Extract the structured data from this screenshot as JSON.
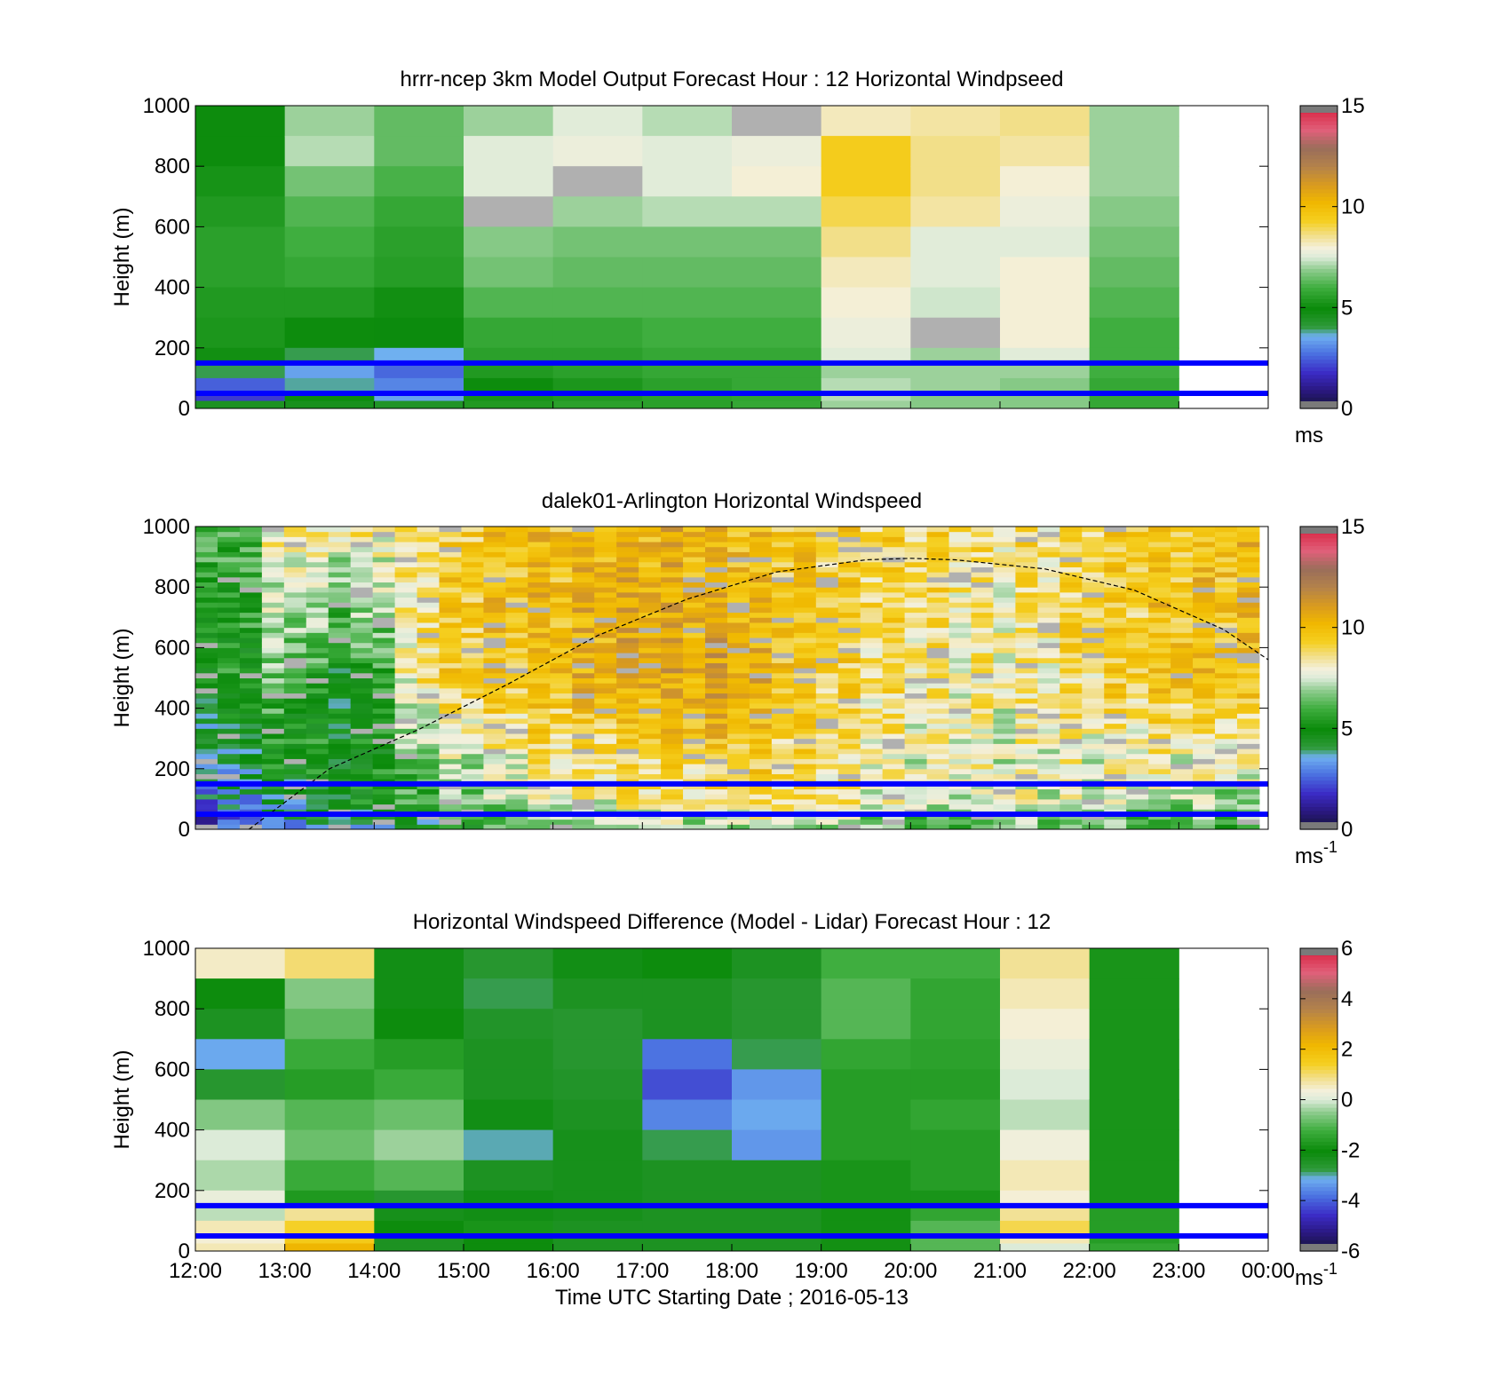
{
  "palette": {
    "speed_stops": [
      [
        0.0,
        "#141432"
      ],
      [
        0.06,
        "#2a1880"
      ],
      [
        0.12,
        "#3b2cc6"
      ],
      [
        0.18,
        "#4a6fe0"
      ],
      [
        0.24,
        "#6fb0f0"
      ],
      [
        0.27,
        "#2f9a3a"
      ],
      [
        0.33,
        "#0a8a0a"
      ],
      [
        0.4,
        "#3fae3f"
      ],
      [
        0.46,
        "#8fcc8f"
      ],
      [
        0.5,
        "#dcebd8"
      ],
      [
        0.53,
        "#f4f0dc"
      ],
      [
        0.57,
        "#f2e090"
      ],
      [
        0.62,
        "#f5cf20"
      ],
      [
        0.68,
        "#f0b800"
      ],
      [
        0.74,
        "#d89a20"
      ],
      [
        0.8,
        "#b4824a"
      ],
      [
        0.86,
        "#9a6e5a"
      ],
      [
        0.92,
        "#e0607a"
      ],
      [
        1.0,
        "#d81e3c"
      ]
    ],
    "overflow_color": "#7a7a7a",
    "missing_color": "#b0b0b0",
    "bounds_line_color": "#0000ff"
  },
  "chart_data": [
    {
      "id": "model",
      "type": "heatmap",
      "title": "hrrr-ncep 3km Model Output   Forecast Hour : 12 Horizontal Windpseed",
      "xlabel": "",
      "ylabel": "Height (m)",
      "xlim": [
        0,
        12
      ],
      "ylim": [
        0,
        1000
      ],
      "yticks": [
        0,
        200,
        400,
        600,
        800,
        1000
      ],
      "xticks": [
        0,
        1,
        2,
        3,
        4,
        5,
        6,
        7,
        8,
        9,
        10,
        11,
        12
      ],
      "show_xtick_labels": false,
      "colorbar": {
        "range": [
          0,
          15
        ],
        "ticks": [
          0,
          5,
          10,
          15
        ],
        "unit": "ms",
        "unit_sup": ""
      },
      "reference_lines": [
        150,
        50
      ],
      "height_levels": [
        1000,
        900,
        800,
        700,
        600,
        500,
        400,
        300,
        200,
        150,
        100,
        50,
        25
      ],
      "columns": [
        {
          "time": 0,
          "values": [
            5.0,
            5.0,
            5.2,
            5.4,
            5.6,
            5.6,
            5.4,
            5.3,
            5.1,
            4.0,
            2.5,
            2.0,
            4.5
          ]
        },
        {
          "time": 1,
          "values": [
            7.0,
            7.2,
            6.6,
            6.2,
            6.0,
            5.8,
            5.4,
            5.0,
            4.0,
            3.4,
            3.8,
            5.0,
            4.6
          ]
        },
        {
          "time": 2,
          "values": [
            6.4,
            6.4,
            6.1,
            5.8,
            5.6,
            5.5,
            5.1,
            4.9,
            3.6,
            2.6,
            3.0,
            3.4,
            4.4
          ]
        },
        {
          "time": 3,
          "values": [
            7.0,
            7.6,
            7.6,
            null,
            6.8,
            6.6,
            6.2,
            5.8,
            5.6,
            5.4,
            5.0,
            5.2,
            5.4
          ]
        },
        {
          "time": 4,
          "values": [
            7.6,
            7.8,
            null,
            7.0,
            6.6,
            6.4,
            6.2,
            5.8,
            5.6,
            5.6,
            5.3,
            5.4,
            5.6
          ]
        },
        {
          "time": 5,
          "values": [
            7.2,
            7.6,
            7.6,
            7.2,
            6.6,
            6.4,
            6.2,
            6.0,
            5.8,
            5.8,
            5.6,
            5.6,
            5.6
          ]
        },
        {
          "time": 6,
          "values": [
            null,
            7.8,
            8.0,
            7.2,
            6.6,
            6.4,
            6.2,
            6.0,
            5.8,
            5.8,
            5.8,
            5.7,
            5.8
          ]
        },
        {
          "time": 7,
          "values": [
            8.2,
            9.4,
            9.4,
            9.0,
            8.6,
            8.2,
            8.0,
            7.8,
            7.6,
            7.0,
            7.2,
            7.2,
            7.0
          ]
        },
        {
          "time": 8,
          "values": [
            8.4,
            8.6,
            8.6,
            8.4,
            7.6,
            7.6,
            7.4,
            null,
            7.0,
            7.0,
            7.0,
            6.8,
            6.8
          ]
        },
        {
          "time": 9,
          "values": [
            8.6,
            8.4,
            8.0,
            7.8,
            7.6,
            8.0,
            8.0,
            8.0,
            7.6,
            7.0,
            6.8,
            6.8,
            6.8
          ]
        },
        {
          "time": 10,
          "values": [
            7.0,
            7.0,
            7.0,
            6.8,
            6.6,
            6.4,
            6.2,
            6.0,
            6.0,
            6.0,
            5.8,
            5.8,
            5.8
          ]
        }
      ]
    },
    {
      "id": "lidar",
      "type": "heatmap",
      "title": "dalek01-Arlington  Horizontal Windspeed",
      "xlabel": "",
      "ylabel": "Height (m)",
      "xlim": [
        0,
        12
      ],
      "ylim": [
        0,
        1000
      ],
      "yticks": [
        0,
        200,
        400,
        600,
        800,
        1000
      ],
      "xticks": [
        0,
        1,
        2,
        3,
        4,
        5,
        6,
        7,
        8,
        9,
        10,
        11,
        12
      ],
      "show_xtick_labels": false,
      "colorbar": {
        "range": [
          0,
          15
        ],
        "ticks": [
          0,
          5,
          10,
          15
        ],
        "unit": "ms",
        "unit_sup": "-1"
      },
      "reference_lines": [
        150,
        50
      ],
      "time_columns_per_hour": 4,
      "time_columns_total": 48,
      "sample_column_hours": 11.9,
      "height_bins": 60,
      "height_profile_anchors": {
        "hours": [
          0,
          0.5,
          1,
          1.5,
          2,
          2.5,
          3,
          4,
          5,
          6,
          6.5,
          7,
          8,
          9,
          10,
          11,
          11.9
        ],
        "speed_at_900m": [
          6.5,
          5.5,
          8.5,
          7.5,
          7.8,
          8.5,
          9.5,
          10.0,
          10.4,
          10.2,
          9.6,
          9.4,
          9.0,
          8.5,
          9.0,
          9.8,
          10.0
        ],
        "speed_at_500m": [
          4.8,
          5.0,
          6.5,
          5.0,
          5.2,
          8.8,
          9.5,
          10.0,
          10.6,
          10.8,
          10.0,
          9.2,
          8.6,
          8.2,
          8.8,
          10.0,
          9.6
        ],
        "speed_at_100m": [
          3.0,
          3.5,
          4.5,
          4.6,
          5.0,
          5.8,
          6.5,
          7.8,
          8.4,
          8.6,
          8.8,
          8.6,
          7.6,
          7.6,
          7.6,
          7.2,
          7.0
        ]
      },
      "boundary_layer_curve": {
        "hours": [
          0.6,
          1.5,
          2.5,
          3.5,
          4.5,
          5.5,
          6.5,
          7.5,
          8.0,
          8.5,
          9.5,
          10.5,
          11.5,
          12.0
        ],
        "heights": [
          0,
          200,
          330,
          480,
          640,
          760,
          850,
          890,
          895,
          890,
          860,
          790,
          660,
          560
        ]
      }
    },
    {
      "id": "difference",
      "type": "heatmap",
      "title": "Horizontal Windspeed Difference (Model - Lidar) Forecast Hour : 12",
      "xlabel": "Time UTC  Starting Date ; 2016-05-13",
      "ylabel": "Height (m)",
      "xlim": [
        0,
        12
      ],
      "ylim": [
        0,
        1000
      ],
      "yticks": [
        0,
        200,
        400,
        600,
        800,
        1000
      ],
      "xticks": [
        0,
        1,
        2,
        3,
        4,
        5,
        6,
        7,
        8,
        9,
        10,
        11,
        12
      ],
      "xtick_labels": [
        "12:00",
        "13:00",
        "14:00",
        "15:00",
        "16:00",
        "17:00",
        "18:00",
        "19:00",
        "20:00",
        "21:00",
        "22:00",
        "23:00",
        "00:00"
      ],
      "show_xtick_labels": true,
      "colorbar": {
        "range": [
          -6,
          6
        ],
        "ticks": [
          -6,
          -4,
          -2,
          0,
          2,
          4,
          6
        ],
        "unit": "ms",
        "unit_sup": "-1"
      },
      "reference_lines": [
        150,
        50
      ],
      "height_levels": [
        1000,
        900,
        800,
        700,
        600,
        500,
        400,
        300,
        200,
        150,
        100,
        50,
        25
      ],
      "columns": [
        {
          "time": 0,
          "values": [
            0.5,
            -2.0,
            -2.4,
            -3.2,
            -2.6,
            -0.6,
            0.0,
            -0.3,
            0.2,
            -0.2,
            0.6,
            0.4,
            0.6
          ]
        },
        {
          "time": 1,
          "values": [
            1.0,
            -0.6,
            -0.9,
            -1.3,
            -1.6,
            -1.0,
            -0.8,
            -1.3,
            -1.7,
            0.8,
            1.4,
            1.6,
            2.2
          ]
        },
        {
          "time": 2,
          "values": [
            -2.2,
            -2.2,
            -2.0,
            -1.6,
            -1.3,
            -0.8,
            -0.4,
            -1.0,
            -2.6,
            -2.3,
            -2.0,
            -2.4,
            -2.4
          ]
        },
        {
          "time": 3,
          "values": [
            -2.6,
            -2.8,
            -2.5,
            -2.4,
            -2.4,
            -2.2,
            -3.0,
            -2.4,
            -2.2,
            -2.2,
            -1.8,
            -2.0,
            -2.0
          ]
        },
        {
          "time": 4,
          "values": [
            -2.2,
            -2.4,
            -2.6,
            -2.6,
            -2.5,
            -2.4,
            -2.3,
            -2.3,
            -2.3,
            -2.3,
            -2.4,
            -2.4,
            -2.4
          ]
        },
        {
          "time": 5,
          "values": [
            -2.0,
            -2.4,
            -2.4,
            -3.8,
            -4.2,
            -3.6,
            -2.8,
            -2.4,
            -2.4,
            -2.4,
            -2.4,
            -2.4,
            -2.4
          ]
        },
        {
          "time": 6,
          "values": [
            -2.4,
            -2.6,
            -2.6,
            -2.8,
            -3.4,
            -3.2,
            -3.4,
            -2.4,
            -2.4,
            -2.4,
            -2.4,
            -2.4,
            -2.4
          ]
        },
        {
          "time": 7,
          "values": [
            -1.2,
            -1.0,
            -1.0,
            -1.4,
            -1.6,
            -1.6,
            -1.6,
            -1.8,
            -1.8,
            -1.9,
            -1.9,
            -1.9,
            -1.9
          ]
        },
        {
          "time": 8,
          "values": [
            -1.2,
            -1.4,
            -1.4,
            -1.5,
            -1.6,
            -1.4,
            -1.6,
            -1.6,
            -1.8,
            -1.4,
            -1.0,
            -1.0,
            -1.0
          ]
        },
        {
          "time": 9,
          "values": [
            0.8,
            0.6,
            0.4,
            0.2,
            0.0,
            -0.2,
            0.3,
            0.6,
            0.4,
            0.8,
            1.2,
            0.6,
            0.0
          ]
        },
        {
          "time": 10,
          "values": [
            -1.8,
            -1.8,
            -1.8,
            -1.8,
            -1.8,
            -1.8,
            -1.8,
            -1.8,
            -1.8,
            -1.6,
            -1.6,
            -1.6,
            -1.4
          ]
        }
      ]
    }
  ]
}
